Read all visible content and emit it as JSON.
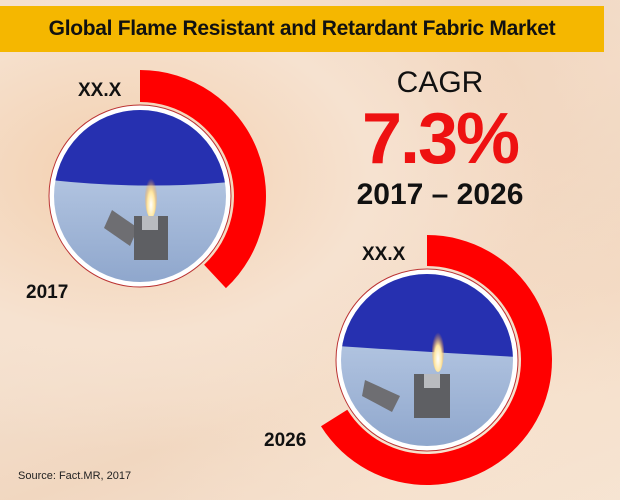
{
  "title": "Global Flame Resistant and Retardant Fabric Market",
  "cagr": {
    "label": "CAGR",
    "value": "7.3%",
    "period": "2017 – 2026"
  },
  "donuts": [
    {
      "year": "2017",
      "value_label": "XX.X"
    },
    {
      "year": "2026",
      "value_label": "XX.X"
    }
  ],
  "source": "Source: Fact.MR, 2017",
  "colors": {
    "title_bar": "#f5b700",
    "accent": "#ff0000"
  }
}
